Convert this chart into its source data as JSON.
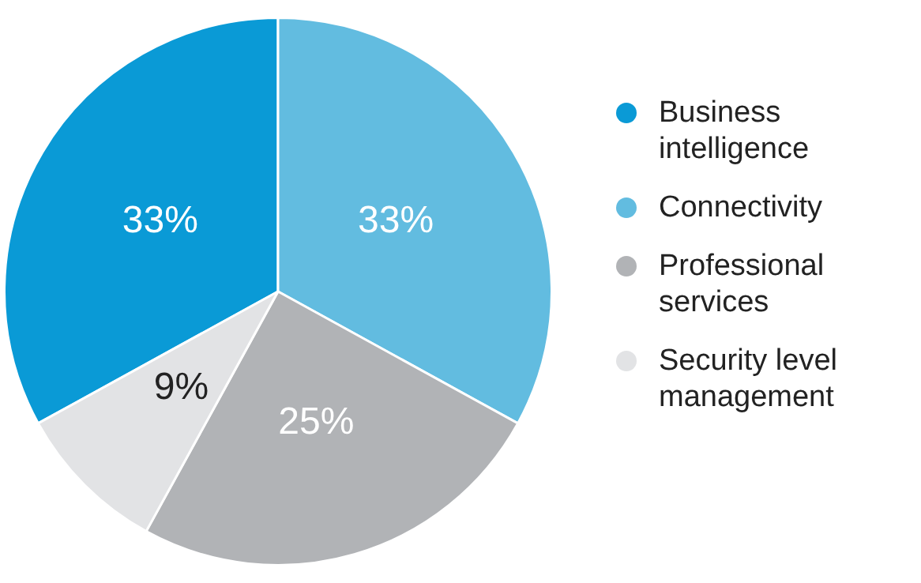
{
  "chart_data": {
    "type": "pie",
    "categories": [
      "Business intelligence",
      "Connectivity",
      "Professional services",
      "Security level management"
    ],
    "values": [
      33,
      33,
      25,
      9
    ],
    "colors": [
      "#0a9ad6",
      "#62bce0",
      "#b1b3b6",
      "#e2e3e5"
    ],
    "value_labels": [
      "33%",
      "33%",
      "25%",
      "9%"
    ],
    "legend": "right"
  }
}
